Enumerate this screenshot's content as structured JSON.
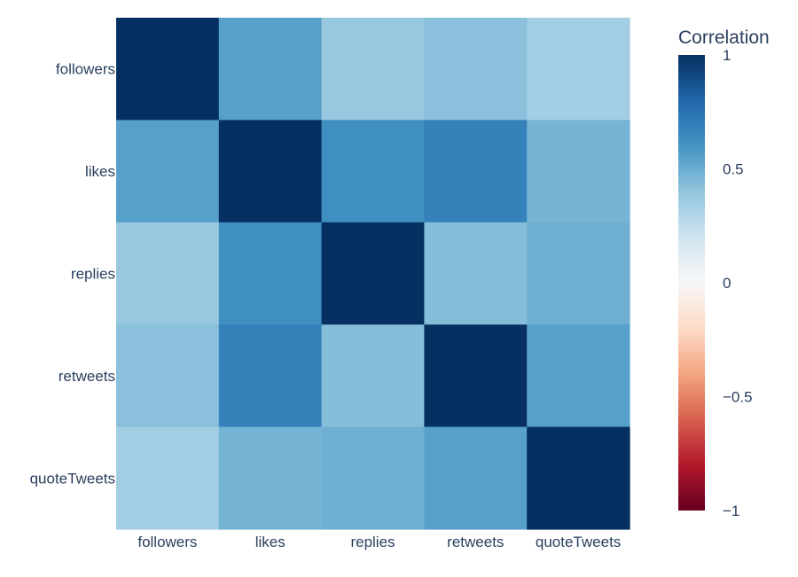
{
  "chart_data": {
    "type": "heatmap",
    "x_labels": [
      "followers",
      "likes",
      "replies",
      "retweets",
      "quoteTweets"
    ],
    "y_labels": [
      "followers",
      "likes",
      "replies",
      "retweets",
      "quoteTweets"
    ],
    "values": [
      [
        1.0,
        0.55,
        0.38,
        0.42,
        0.35
      ],
      [
        0.55,
        1.0,
        0.62,
        0.68,
        0.47
      ],
      [
        0.38,
        0.62,
        1.0,
        0.43,
        0.49
      ],
      [
        0.42,
        0.68,
        0.43,
        1.0,
        0.55
      ],
      [
        0.35,
        0.47,
        0.49,
        0.55,
        1.0
      ]
    ],
    "colorscale": "RdBu",
    "zmin": -1,
    "zmax": 1,
    "colorbar": {
      "title": "Correlation",
      "tick_values": [
        1,
        0.5,
        0,
        -0.5,
        -1
      ],
      "tick_labels": [
        "1",
        "0.5",
        "0",
        "−0.5",
        "−1"
      ]
    },
    "colors": {
      "-1": "#67001f",
      "-0.8": "#b2182b",
      "-0.6": "#d6604d",
      "-0.4": "#f4a582",
      "-0.2": "#fddbc7",
      "0": "#f7f7f7",
      "0.2": "#d1e5f0",
      "0.4": "#92c5de",
      "0.6": "#4393c3",
      "0.8": "#2166ac",
      "1": "#053061"
    }
  }
}
